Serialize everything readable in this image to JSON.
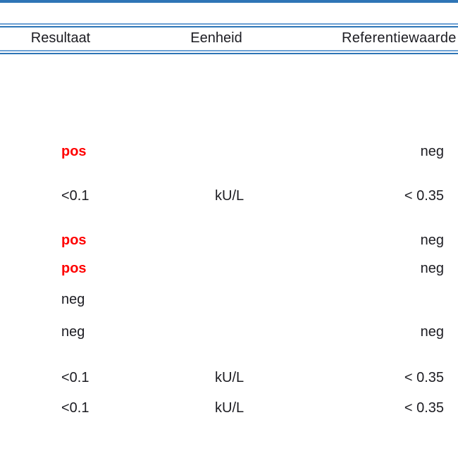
{
  "report": {
    "header": {
      "resultaat": "Resultaat",
      "eenheid": "Eenheid",
      "referentiewaarde": "Referentiewaarde"
    },
    "rows": [
      {
        "resultaat": "pos",
        "eenheid": "",
        "referentiewaarde": "neg",
        "abnormal": true
      },
      {
        "resultaat": "<0.1",
        "eenheid": "kU/L",
        "referentiewaarde": "< 0.35",
        "abnormal": false
      },
      {
        "resultaat": "pos",
        "eenheid": "",
        "referentiewaarde": "neg",
        "abnormal": true
      },
      {
        "resultaat": "pos",
        "eenheid": "",
        "referentiewaarde": "neg",
        "abnormal": true
      },
      {
        "resultaat": "neg",
        "eenheid": "",
        "referentiewaarde": "",
        "abnormal": false
      },
      {
        "resultaat": "neg",
        "eenheid": "",
        "referentiewaarde": "neg",
        "abnormal": false
      },
      {
        "resultaat": "<0.1",
        "eenheid": "kU/L",
        "referentiewaarde": "< 0.35",
        "abnormal": false
      },
      {
        "resultaat": "<0.1",
        "eenheid": "kU/L",
        "referentiewaarde": "< 0.35",
        "abnormal": false
      }
    ],
    "colors": {
      "rule_blue": "#2e75b6",
      "rule_light": "#6ca0d4",
      "abnormal_red": "#ff0000",
      "text": "#1c1c22"
    }
  }
}
